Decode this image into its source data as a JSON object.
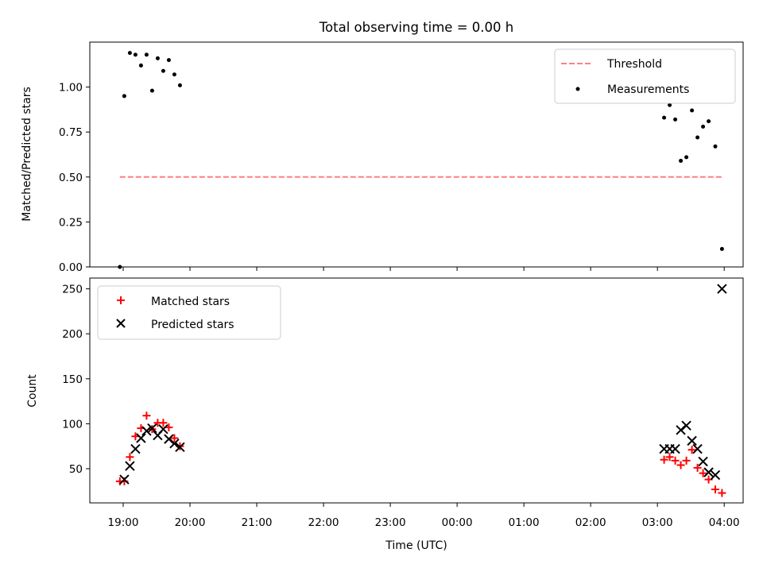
{
  "chart_data": [
    {
      "type": "scatter",
      "title": "Total observing time = 0.00 h",
      "xlabel": "",
      "ylabel": "Matched/Predicted stars",
      "xlim": [
        "18:30",
        "04:17"
      ],
      "ylim": [
        0.0,
        1.25
      ],
      "yticks": [
        "0.00",
        "0.25",
        "0.50",
        "0.75",
        "1.00"
      ],
      "yticks_values": [
        0.0,
        0.25,
        0.5,
        0.75,
        1.0
      ],
      "legend": {
        "placement": "top-right",
        "entries": [
          "Threshold",
          "Measurements"
        ]
      },
      "grid": false,
      "series": [
        {
          "name": "Threshold",
          "kind": "dashed-line",
          "color": "#ff7f7f",
          "points": [
            [
              "18:57",
              0.5
            ],
            [
              "03:58",
              0.5
            ]
          ]
        },
        {
          "name": "Measurements",
          "kind": "dots",
          "color": "#000000",
          "points": [
            [
              "18:57",
              0.0
            ],
            [
              "19:01",
              0.95
            ],
            [
              "19:06",
              1.19
            ],
            [
              "19:11",
              1.18
            ],
            [
              "19:16",
              1.12
            ],
            [
              "19:21",
              1.18
            ],
            [
              "19:26",
              0.98
            ],
            [
              "19:31",
              1.16
            ],
            [
              "19:36",
              1.09
            ],
            [
              "19:41",
              1.15
            ],
            [
              "19:46",
              1.07
            ],
            [
              "19:51",
              1.01
            ],
            [
              "03:06",
              0.83
            ],
            [
              "03:11",
              0.9
            ],
            [
              "03:16",
              0.82
            ],
            [
              "03:21",
              0.59
            ],
            [
              "03:26",
              0.61
            ],
            [
              "03:31",
              0.87
            ],
            [
              "03:36",
              0.72
            ],
            [
              "03:41",
              0.78
            ],
            [
              "03:46",
              0.81
            ],
            [
              "03:52",
              0.67
            ],
            [
              "03:58",
              0.1
            ]
          ]
        }
      ]
    },
    {
      "type": "scatter",
      "title": "",
      "xlabel": "Time (UTC)",
      "ylabel": "Count",
      "xlim": [
        "18:30",
        "04:17"
      ],
      "ylim": [
        12,
        262
      ],
      "yticks": [
        "50",
        "100",
        "150",
        "200",
        "250"
      ],
      "yticks_values": [
        50,
        100,
        150,
        200,
        250
      ],
      "xticks": [
        "19:00",
        "20:00",
        "21:00",
        "22:00",
        "23:00",
        "00:00",
        "01:00",
        "02:00",
        "03:00",
        "04:00"
      ],
      "legend": {
        "placement": "top-left",
        "entries": [
          "Matched stars",
          "Predicted stars"
        ]
      },
      "grid": false,
      "series": [
        {
          "name": "Matched stars",
          "marker": "plus",
          "color": "#ff0000",
          "points": [
            [
              "18:57",
              36
            ],
            [
              "19:01",
              36
            ],
            [
              "19:06",
              63
            ],
            [
              "19:11",
              86
            ],
            [
              "19:16",
              95
            ],
            [
              "19:21",
              109
            ],
            [
              "19:26",
              94
            ],
            [
              "19:31",
              101
            ],
            [
              "19:36",
              101
            ],
            [
              "19:41",
              96
            ],
            [
              "19:46",
              84
            ],
            [
              "19:51",
              75
            ],
            [
              "03:06",
              60
            ],
            [
              "03:11",
              63
            ],
            [
              "03:16",
              59
            ],
            [
              "03:21",
              54
            ],
            [
              "03:26",
              59
            ],
            [
              "03:31",
              71
            ],
            [
              "03:36",
              51
            ],
            [
              "03:41",
              45
            ],
            [
              "03:46",
              38
            ],
            [
              "03:52",
              27
            ],
            [
              "03:58",
              23
            ]
          ]
        },
        {
          "name": "Predicted stars",
          "marker": "x",
          "color": "#000000",
          "points": [
            [
              "19:01",
              38
            ],
            [
              "19:06",
              53
            ],
            [
              "19:11",
              72
            ],
            [
              "19:16",
              84
            ],
            [
              "19:21",
              92
            ],
            [
              "19:26",
              95
            ],
            [
              "19:31",
              87
            ],
            [
              "19:36",
              94
            ],
            [
              "19:41",
              83
            ],
            [
              "19:46",
              78
            ],
            [
              "19:51",
              74
            ],
            [
              "03:06",
              72
            ],
            [
              "03:11",
              72
            ],
            [
              "03:16",
              72
            ],
            [
              "03:21",
              93
            ],
            [
              "03:26",
              98
            ],
            [
              "03:31",
              81
            ],
            [
              "03:36",
              72
            ],
            [
              "03:41",
              58
            ],
            [
              "03:46",
              46
            ],
            [
              "03:52",
              43
            ],
            [
              "03:58",
              250
            ]
          ]
        }
      ]
    }
  ]
}
